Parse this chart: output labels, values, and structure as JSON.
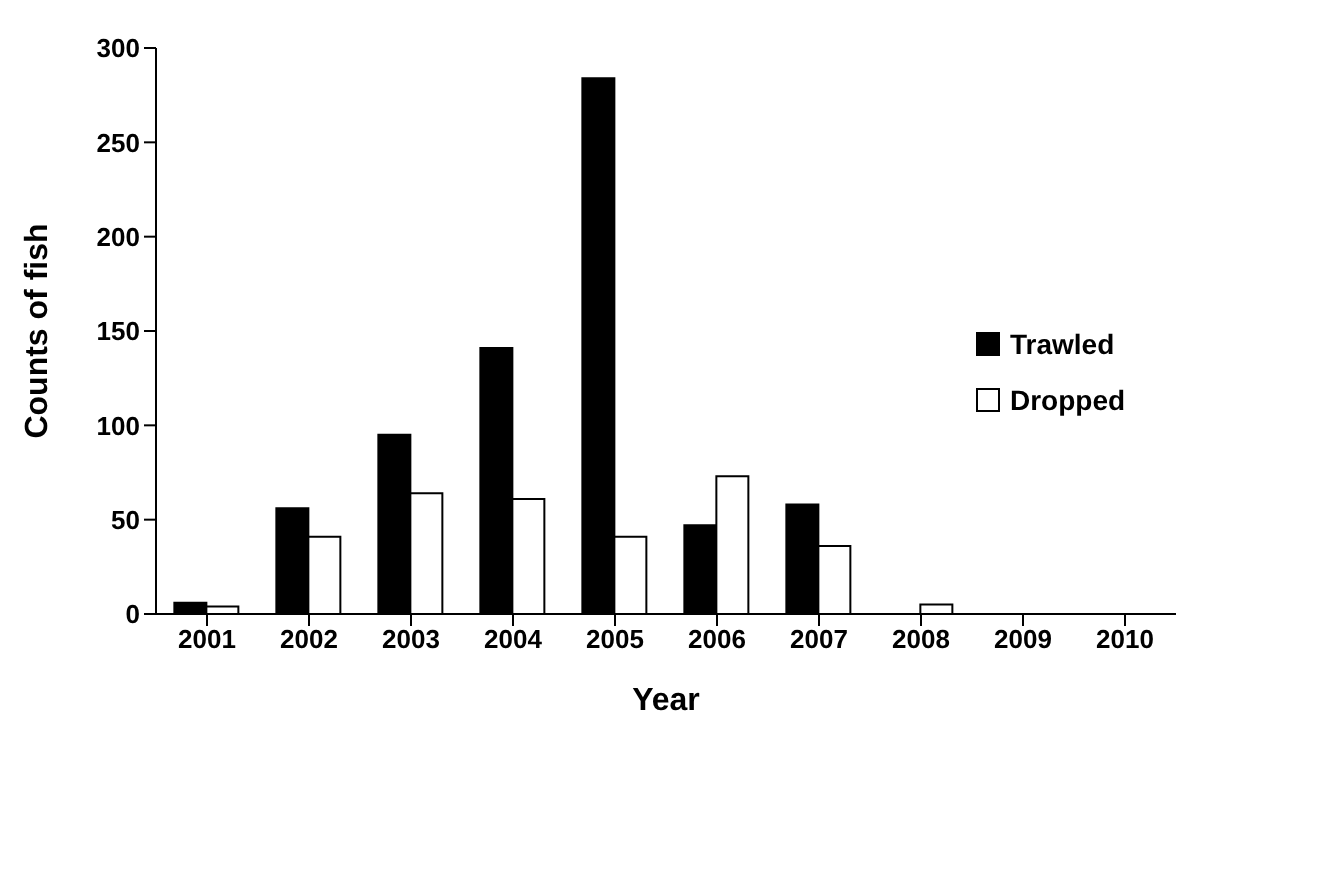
{
  "chart_data": {
    "type": "bar",
    "xlabel": "Year",
    "ylabel": "Counts of fish",
    "categories": [
      "2001",
      "2002",
      "2003",
      "2004",
      "2005",
      "2006",
      "2007",
      "2008",
      "2009",
      "2010"
    ],
    "series": [
      {
        "name": "Trawled",
        "color": "#000000",
        "values": [
          6,
          56,
          95,
          141,
          284,
          47,
          58,
          0,
          0,
          0
        ]
      },
      {
        "name": "Dropped",
        "color": "#ffffff",
        "values": [
          4,
          41,
          64,
          61,
          41,
          73,
          36,
          5,
          0,
          0
        ]
      }
    ],
    "ylim": [
      0,
      300
    ],
    "yticks": [
      0,
      50,
      100,
      150,
      200,
      250,
      300
    ],
    "grid": false,
    "legend": "right"
  }
}
